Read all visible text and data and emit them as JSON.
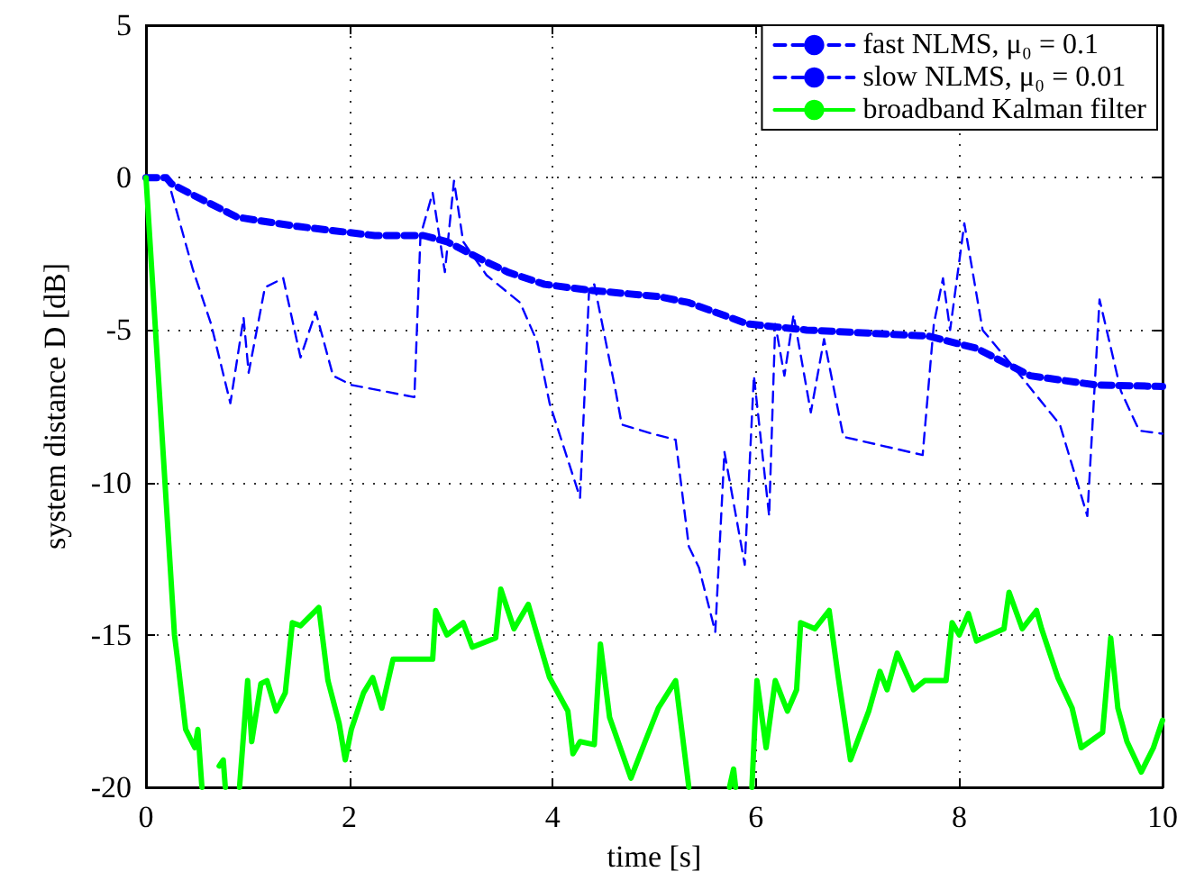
{
  "chart_data": {
    "type": "line",
    "xlabel": "time [s]",
    "ylabel": "system distance D [dB]",
    "xlim": [
      0,
      10
    ],
    "ylim": [
      -20,
      5
    ],
    "xticks": [
      0,
      2,
      4,
      6,
      8,
      10
    ],
    "yticks": [
      -20,
      -15,
      -10,
      -5,
      0,
      5
    ],
    "grid": true,
    "legend": "top right",
    "marker": "none",
    "series": [
      {
        "name": "fast NLMS, μ₀ = 0.1",
        "color": "#0000ff",
        "line_style": "dashed",
        "x": [
          0,
          0.21,
          0.46,
          0.64,
          0.83,
          0.96,
          1.01,
          1.17,
          1.35,
          1.52,
          1.67,
          1.84,
          2.02,
          2.64,
          2.7,
          2.82,
          2.94,
          3.03,
          3.12,
          3.35,
          3.68,
          3.85,
          3.97,
          4.27,
          4.36,
          4.41,
          4.62,
          4.68,
          4.98,
          5.21,
          5.34,
          5.44,
          5.6,
          5.69,
          5.89,
          5.98,
          6.13,
          6.19,
          6.28,
          6.37,
          6.54,
          6.67,
          6.86,
          7.64,
          7.75,
          7.84,
          7.91,
          8.05,
          8.23,
          8.53,
          8.99,
          9.26,
          9.38,
          9.59,
          9.77,
          10
        ],
        "values": [
          0,
          0,
          -3.0,
          -4.8,
          -7.4,
          -4.6,
          -6.4,
          -3.6,
          -3.3,
          -5.9,
          -4.4,
          -6.5,
          -6.8,
          -7.2,
          -1.9,
          -0.5,
          -3.1,
          -0.1,
          -2.1,
          -3.2,
          -4.1,
          -5.4,
          -7.4,
          -10.5,
          -3.6,
          -3.5,
          -7.0,
          -8.1,
          -8.4,
          -8.6,
          -12.1,
          -12.8,
          -14.9,
          -9.0,
          -12.7,
          -6.5,
          -11.1,
          -4.8,
          -6.5,
          -4.5,
          -7.7,
          -5.3,
          -8.5,
          -9.1,
          -4.8,
          -3.3,
          -5.0,
          -1.5,
          -5.0,
          -6.2,
          -8.1,
          -11.1,
          -4.0,
          -7.0,
          -8.3,
          -8.4
        ]
      },
      {
        "name": "slow NLMS, μ₀ = 0.01",
        "color": "#0000ff",
        "line_style": "dashed",
        "x": [
          0,
          0.2,
          0.25,
          0.48,
          0.9,
          1.49,
          2.25,
          2.73,
          2.96,
          3.31,
          3.56,
          3.92,
          4.38,
          5.04,
          5.34,
          5.92,
          6.5,
          7.7,
          8.17,
          8.7,
          9.34,
          10
        ],
        "values": [
          0,
          0,
          -0.2,
          -0.6,
          -1.3,
          -1.6,
          -1.9,
          -1.9,
          -2.1,
          -2.7,
          -3.1,
          -3.5,
          -3.7,
          -3.9,
          -4.1,
          -4.8,
          -5.0,
          -5.2,
          -5.6,
          -6.5,
          -6.8,
          -6.85
        ]
      },
      {
        "name": "broadband Kalman filter",
        "color": "#00ff00",
        "line_style": "solid",
        "x": [
          0,
          0.28,
          0.31,
          0.39,
          0.48,
          0.51,
          0.55,
          0.6,
          0.72,
          0.76,
          0.78,
          0.85,
          0.92,
          1.0,
          1.04,
          1.13,
          1.19,
          1.28,
          1.37,
          1.44,
          1.52,
          1.7,
          1.79,
          1.9,
          1.96,
          2.02,
          2.14,
          2.23,
          2.32,
          2.43,
          2.67,
          2.82,
          2.85,
          2.96,
          3.12,
          3.21,
          3.44,
          3.49,
          3.62,
          3.76,
          3.83,
          3.97,
          4.15,
          4.2,
          4.27,
          4.41,
          4.47,
          4.56,
          4.77,
          4.91,
          5.04,
          5.21,
          5.34,
          5.5,
          5.74,
          5.78,
          5.8,
          5.88,
          5.96,
          6.01,
          6.1,
          6.19,
          6.31,
          6.4,
          6.44,
          6.58,
          6.72,
          6.81,
          6.93,
          7.11,
          7.22,
          7.29,
          7.39,
          7.55,
          7.66,
          7.87,
          7.93,
          8.0,
          8.09,
          8.17,
          8.44,
          8.49,
          8.62,
          8.76,
          8.81,
          8.97,
          9.11,
          9.2,
          9.41,
          9.49,
          9.56,
          9.65,
          9.79,
          9.91,
          10
        ],
        "values": [
          0,
          -15,
          -15.8,
          -18.1,
          -18.7,
          -18.1,
          -20,
          null,
          -19.3,
          -19.1,
          -20,
          null,
          -20,
          -16.5,
          -18.5,
          -16.6,
          -16.5,
          -17.5,
          -16.9,
          -14.6,
          -14.7,
          -14.1,
          -16.5,
          -17.9,
          -19.1,
          -18.1,
          -16.9,
          -16.4,
          -17.4,
          -15.8,
          -15.8,
          -15.8,
          -14.2,
          -15.0,
          -14.6,
          -15.4,
          -15.1,
          -13.5,
          -14.8,
          -14.0,
          -14.8,
          -16.4,
          -17.5,
          -18.9,
          -18.5,
          -18.6,
          -15.3,
          -17.7,
          -19.7,
          -18.5,
          -17.4,
          -16.5,
          -20,
          null,
          -20,
          -19.4,
          -20,
          null,
          -20,
          -16.5,
          -18.7,
          -16.5,
          -17.5,
          -16.8,
          -14.6,
          -14.8,
          -14.2,
          -16.4,
          -19.1,
          -17.5,
          -16.2,
          -16.8,
          -15.6,
          -16.8,
          -16.5,
          -16.5,
          -14.6,
          -15.0,
          -14.3,
          -15.2,
          -14.8,
          -13.6,
          -14.8,
          -14.2,
          -14.8,
          -16.4,
          -17.4,
          -18.7,
          -18.2,
          -15.1,
          -17.4,
          -18.5,
          -19.5,
          -18.7,
          -17.8
        ]
      }
    ]
  }
}
